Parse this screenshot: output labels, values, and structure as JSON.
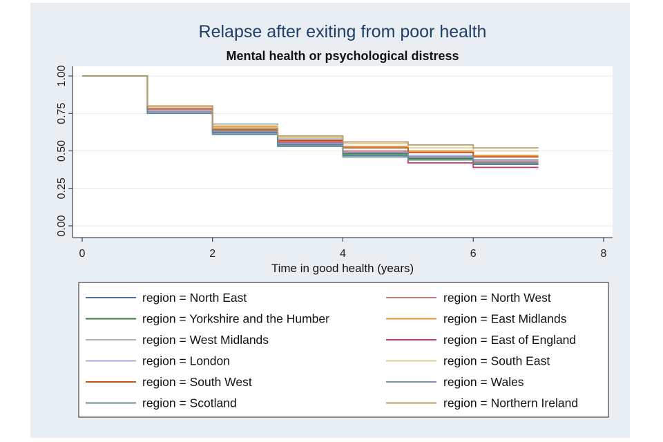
{
  "chart_data": {
    "type": "line",
    "title": "Relapse after exiting from poor health",
    "subtitle": "Mental health or psychological distress",
    "xlabel": "Time in good health (years)",
    "ylabel": "",
    "xlim": [
      0,
      8
    ],
    "ylim": [
      0,
      1
    ],
    "x_ticks": [
      0,
      2,
      4,
      6,
      8
    ],
    "y_ticks": [
      0,
      0.25,
      0.5,
      0.75,
      1
    ],
    "y_tick_labels": [
      "0.00",
      "0.25",
      "0.50",
      "0.75",
      "1.00"
    ],
    "grid": true,
    "legend_position": "bottom",
    "step": true,
    "x": [
      0,
      1,
      2,
      3,
      4,
      5,
      6,
      7
    ],
    "series": [
      {
        "name": "region = North East",
        "color": "#4a6f96",
        "values": [
          1.0,
          0.76,
          0.62,
          0.54,
          0.47,
          0.44,
          0.41,
          0.41
        ]
      },
      {
        "name": "region = North West",
        "color": "#c9787b",
        "values": [
          1.0,
          0.79,
          0.64,
          0.56,
          0.5,
          0.46,
          0.43,
          0.43
        ]
      },
      {
        "name": "region = Yorkshire and the Humber",
        "color": "#3e7a3a",
        "values": [
          1.0,
          0.77,
          0.63,
          0.55,
          0.48,
          0.45,
          0.42,
          0.42
        ]
      },
      {
        "name": "region = East Midlands",
        "color": "#e8902a",
        "values": [
          1.0,
          0.8,
          0.66,
          0.59,
          0.53,
          0.5,
          0.47,
          0.47
        ]
      },
      {
        "name": "region = West Midlands",
        "color": "#a9b6b4",
        "values": [
          1.0,
          0.78,
          0.68,
          0.58,
          0.52,
          0.49,
          0.46,
          0.46
        ]
      },
      {
        "name": "region = East of England",
        "color": "#d6335b",
        "values": [
          1.0,
          0.78,
          0.64,
          0.56,
          0.49,
          0.42,
          0.39,
          0.39
        ]
      },
      {
        "name": "region = London",
        "color": "#b8a6d9",
        "values": [
          1.0,
          0.77,
          0.64,
          0.55,
          0.49,
          0.47,
          0.44,
          0.44
        ]
      },
      {
        "name": "region = South East",
        "color": "#e2cf95",
        "values": [
          1.0,
          0.79,
          0.67,
          0.59,
          0.55,
          0.52,
          0.5,
          0.5
        ]
      },
      {
        "name": "region = South West",
        "color": "#c0541e",
        "values": [
          1.0,
          0.78,
          0.64,
          0.57,
          0.52,
          0.49,
          0.46,
          0.46
        ]
      },
      {
        "name": "region = Wales",
        "color": "#7d93b5",
        "values": [
          1.0,
          0.76,
          0.63,
          0.55,
          0.49,
          0.46,
          0.44,
          0.44
        ]
      },
      {
        "name": "region = Scotland",
        "color": "#5f8a8b",
        "values": [
          1.0,
          0.75,
          0.61,
          0.53,
          0.46,
          0.44,
          0.42,
          0.42
        ]
      },
      {
        "name": "region = Northern Ireland",
        "color": "#b59a6a",
        "values": [
          1.0,
          0.8,
          0.65,
          0.6,
          0.56,
          0.54,
          0.52,
          0.52
        ]
      }
    ]
  }
}
